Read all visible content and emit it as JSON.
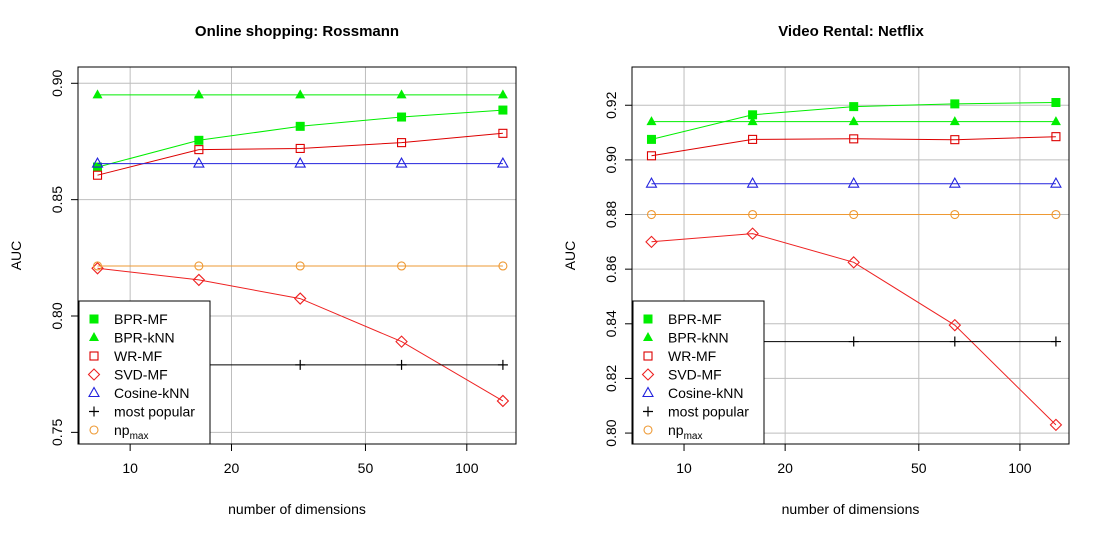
{
  "colors": {
    "BPR-MF": "#00ee00",
    "BPR-kNN": "#00ee00",
    "WR-MF": "#dd0000",
    "SVD-MF": "#ee2222",
    "Cosine-kNN": "#2222dd",
    "most popular": "#000000",
    "np_max": "#ee9933",
    "grid": "#bebebe",
    "axis": "#000000"
  },
  "chart_data": [
    {
      "type": "line",
      "title": "Online shopping: Rossmann",
      "xlabel": "number of dimensions",
      "ylabel": "AUC",
      "x_scale": "log",
      "xlim": [
        7,
        140
      ],
      "ylim": [
        0.745,
        0.907
      ],
      "x_ticks": [
        10,
        20,
        50,
        100
      ],
      "y_ticks": [
        0.75,
        0.8,
        0.85,
        0.9
      ],
      "y_tick_labels": [
        "0.75",
        "0.80",
        "0.85",
        "0.90"
      ],
      "grid": true,
      "legend_position": "bottom-left",
      "x": [
        8,
        16,
        32,
        64,
        128
      ],
      "series": [
        {
          "name": "BPR-MF",
          "marker": "filled-square",
          "values": [
            0.864,
            0.8755,
            0.8815,
            0.8855,
            0.8885
          ]
        },
        {
          "name": "BPR-kNN",
          "marker": "filled-triangle",
          "values": [
            0.895,
            0.895,
            0.895,
            0.895,
            0.895
          ]
        },
        {
          "name": "WR-MF",
          "marker": "open-square",
          "values": [
            0.8605,
            0.8715,
            0.872,
            0.8745,
            0.8785
          ]
        },
        {
          "name": "SVD-MF",
          "marker": "open-diamond",
          "values": [
            0.8205,
            0.8155,
            0.8075,
            0.789,
            0.7635
          ]
        },
        {
          "name": "Cosine-kNN",
          "marker": "open-triangle",
          "values": [
            0.8655,
            0.8655,
            0.8655,
            0.8655,
            0.8655
          ]
        },
        {
          "name": "most popular",
          "marker": "plus",
          "values": [
            0.779,
            0.779,
            0.779,
            0.779,
            0.779
          ]
        },
        {
          "name": "np_max",
          "legend_label": "np",
          "legend_sub": "max",
          "marker": "open-circle",
          "values": [
            0.8215,
            0.8215,
            0.8215,
            0.8215,
            0.8215
          ]
        }
      ]
    },
    {
      "type": "line",
      "title": "Video Rental: Netflix",
      "xlabel": "number of dimensions",
      "ylabel": "AUC",
      "x_scale": "log",
      "xlim": [
        7,
        140
      ],
      "ylim": [
        0.796,
        0.934
      ],
      "x_ticks": [
        10,
        20,
        50,
        100
      ],
      "y_ticks": [
        0.8,
        0.82,
        0.84,
        0.86,
        0.88,
        0.9,
        0.92
      ],
      "y_tick_labels": [
        "0.80",
        "0.82",
        "0.84",
        "0.86",
        "0.88",
        "0.90",
        "0.92"
      ],
      "grid": true,
      "legend_position": "bottom-left",
      "x": [
        8,
        16,
        32,
        64,
        128
      ],
      "series": [
        {
          "name": "BPR-MF",
          "marker": "filled-square",
          "values": [
            0.9075,
            0.9165,
            0.9195,
            0.9205,
            0.921
          ]
        },
        {
          "name": "BPR-kNN",
          "marker": "filled-triangle",
          "values": [
            0.914,
            0.914,
            0.914,
            0.914,
            0.914
          ]
        },
        {
          "name": "WR-MF",
          "marker": "open-square",
          "values": [
            0.9015,
            0.9075,
            0.9077,
            0.9074,
            0.9085
          ]
        },
        {
          "name": "SVD-MF",
          "marker": "open-diamond",
          "values": [
            0.87,
            0.873,
            0.8625,
            0.8395,
            0.803
          ]
        },
        {
          "name": "Cosine-kNN",
          "marker": "open-triangle",
          "values": [
            0.8913,
            0.8913,
            0.8913,
            0.8913,
            0.8913
          ]
        },
        {
          "name": "most popular",
          "marker": "plus",
          "values": [
            0.8335,
            0.8335,
            0.8335,
            0.8335,
            0.8335
          ]
        },
        {
          "name": "np_max",
          "legend_label": "np",
          "legend_sub": "max",
          "marker": "open-circle",
          "values": [
            0.88,
            0.88,
            0.88,
            0.88,
            0.88
          ]
        }
      ]
    }
  ]
}
